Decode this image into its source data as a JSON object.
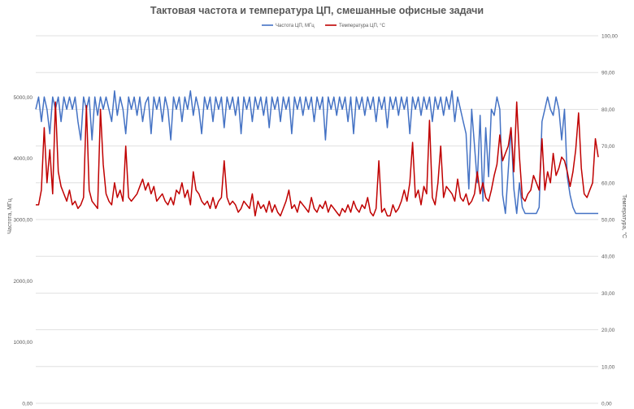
{
  "chart_data": {
    "type": "line",
    "title": "Тактовая частота и температура ЦП, смешанные офисные задачи",
    "legend_position": "top",
    "grid": true,
    "y_left": {
      "label": "Частота, МГц",
      "lim": [
        0,
        6000
      ],
      "ticks": [
        0,
        1000,
        2000,
        3000,
        4000,
        5000
      ],
      "tick_labels": [
        "0,00",
        "1000,00",
        "2000,00",
        "3000,00",
        "4000,00",
        "5000,00"
      ]
    },
    "y_right": {
      "label": "Температура, °C",
      "lim": [
        0,
        100
      ],
      "ticks": [
        0,
        10,
        20,
        30,
        40,
        50,
        60,
        70,
        80,
        90,
        100
      ],
      "tick_labels": [
        "0,00",
        "10,00",
        "20,00",
        "30,00",
        "40,00",
        "50,00",
        "60,00",
        "70,00",
        "80,00",
        "90,00",
        "100,00"
      ]
    },
    "x_range": [
      0,
      400
    ],
    "series": [
      {
        "name": "Частота ЦП, МГц",
        "axis": "left",
        "color": "#4472c4",
        "x": [
          0,
          2,
          4,
          6,
          8,
          10,
          12,
          14,
          16,
          18,
          20,
          22,
          24,
          26,
          28,
          30,
          32,
          34,
          36,
          38,
          40,
          42,
          44,
          46,
          48,
          50,
          52,
          54,
          56,
          58,
          60,
          62,
          64,
          66,
          68,
          70,
          72,
          74,
          76,
          78,
          80,
          82,
          84,
          86,
          88,
          90,
          92,
          94,
          96,
          98,
          100,
          102,
          104,
          106,
          108,
          110,
          112,
          114,
          116,
          118,
          120,
          122,
          124,
          126,
          128,
          130,
          132,
          134,
          136,
          138,
          140,
          142,
          144,
          146,
          148,
          150,
          152,
          154,
          156,
          158,
          160,
          162,
          164,
          166,
          168,
          170,
          172,
          174,
          176,
          178,
          180,
          182,
          184,
          186,
          188,
          190,
          192,
          194,
          196,
          198,
          200,
          202,
          204,
          206,
          208,
          210,
          212,
          214,
          216,
          218,
          220,
          222,
          224,
          226,
          228,
          230,
          232,
          234,
          236,
          238,
          240,
          242,
          244,
          246,
          248,
          250,
          252,
          254,
          256,
          258,
          260,
          262,
          264,
          266,
          268,
          270,
          272,
          274,
          276,
          278,
          280,
          282,
          284,
          286,
          288,
          290,
          292,
          294,
          296,
          298,
          300,
          302,
          304,
          306,
          308,
          310,
          312,
          314,
          316,
          318,
          320,
          322,
          324,
          326,
          328,
          330,
          332,
          334,
          336,
          338,
          340,
          342,
          344,
          346,
          348,
          350,
          352,
          354,
          356,
          358,
          360,
          362,
          364,
          366,
          368,
          370,
          372,
          374,
          376,
          378,
          380,
          382,
          384,
          386,
          388,
          390,
          392,
          394,
          396,
          398,
          400
        ],
        "values": [
          4800,
          5000,
          4600,
          5000,
          4800,
          4400,
          5000,
          4800,
          5000,
          4600,
          5000,
          4800,
          5000,
          4800,
          5000,
          4600,
          4300,
          5000,
          4800,
          5000,
          4300,
          5000,
          4700,
          5000,
          4800,
          5000,
          4800,
          4600,
          5100,
          4700,
          5000,
          4800,
          4400,
          5000,
          4800,
          5000,
          4700,
          5000,
          4600,
          4900,
          5000,
          4400,
          5000,
          4800,
          5000,
          4600,
          5000,
          4800,
          4300,
          5000,
          4800,
          5000,
          4600,
          5000,
          4800,
          5100,
          4700,
          5000,
          4800,
          4400,
          5000,
          4800,
          5000,
          4600,
          5000,
          4800,
          5000,
          4500,
          5000,
          4800,
          5000,
          4700,
          5000,
          4400,
          5000,
          4800,
          5000,
          4600,
          5000,
          4800,
          5000,
          4700,
          5000,
          4500,
          5000,
          4800,
          5000,
          4600,
          5000,
          4800,
          5000,
          4400,
          5000,
          4800,
          5000,
          4700,
          5000,
          4800,
          5000,
          4600,
          5000,
          4800,
          5000,
          4300,
          5000,
          4800,
          5000,
          4700,
          5000,
          4800,
          5000,
          4600,
          5000,
          4400,
          5000,
          4800,
          5000,
          4700,
          5000,
          4800,
          5000,
          4600,
          5000,
          4800,
          5000,
          4500,
          5000,
          4800,
          5000,
          4700,
          5000,
          4800,
          5000,
          4400,
          5000,
          4800,
          5000,
          4700,
          5000,
          4800,
          5000,
          4600,
          5000,
          4800,
          5000,
          4700,
          5000,
          4800,
          5100,
          4600,
          5000,
          4800,
          4600,
          4400,
          3500,
          4800,
          4200,
          3600,
          4700,
          3300,
          4500,
          3700,
          4800,
          4700,
          5000,
          4800,
          3400,
          3100,
          3800,
          4500,
          3500,
          3100,
          3600,
          3200,
          3100,
          3100,
          3100,
          3100,
          3100,
          3200,
          4600,
          4800,
          5000,
          4800,
          4700,
          5000,
          4800,
          4300,
          4800,
          3700,
          3400,
          3200,
          3100,
          3100,
          3100,
          3100,
          3100,
          3100,
          3100,
          3100,
          3100
        ]
      },
      {
        "name": "Температура ЦП, °C",
        "axis": "right",
        "color": "#c00000",
        "x": [
          0,
          2,
          4,
          6,
          8,
          10,
          12,
          14,
          16,
          18,
          20,
          22,
          24,
          26,
          28,
          30,
          32,
          34,
          36,
          38,
          40,
          42,
          44,
          46,
          48,
          50,
          52,
          54,
          56,
          58,
          60,
          62,
          64,
          66,
          68,
          70,
          72,
          74,
          76,
          78,
          80,
          82,
          84,
          86,
          88,
          90,
          92,
          94,
          96,
          98,
          100,
          102,
          104,
          106,
          108,
          110,
          112,
          114,
          116,
          118,
          120,
          122,
          124,
          126,
          128,
          130,
          132,
          134,
          136,
          138,
          140,
          142,
          144,
          146,
          148,
          150,
          152,
          154,
          156,
          158,
          160,
          162,
          164,
          166,
          168,
          170,
          172,
          174,
          176,
          178,
          180,
          182,
          184,
          186,
          188,
          190,
          192,
          194,
          196,
          198,
          200,
          202,
          204,
          206,
          208,
          210,
          212,
          214,
          216,
          218,
          220,
          222,
          224,
          226,
          228,
          230,
          232,
          234,
          236,
          238,
          240,
          242,
          244,
          246,
          248,
          250,
          252,
          254,
          256,
          258,
          260,
          262,
          264,
          266,
          268,
          270,
          272,
          274,
          276,
          278,
          280,
          282,
          284,
          286,
          288,
          290,
          292,
          294,
          296,
          298,
          300,
          302,
          304,
          306,
          308,
          310,
          312,
          314,
          316,
          318,
          320,
          322,
          324,
          326,
          328,
          330,
          332,
          334,
          336,
          338,
          340,
          342,
          344,
          346,
          348,
          350,
          352,
          354,
          356,
          358,
          360,
          362,
          364,
          366,
          368,
          370,
          372,
          374,
          376,
          378,
          380,
          382,
          384,
          386,
          388,
          390,
          392,
          394,
          396,
          398,
          400
        ],
        "values": [
          54,
          54,
          58,
          75,
          60,
          69,
          57,
          82,
          63,
          59,
          57,
          55,
          58,
          54,
          55,
          53,
          54,
          56,
          81,
          58,
          55,
          54,
          53,
          80,
          65,
          57,
          55,
          54,
          60,
          56,
          58,
          55,
          70,
          56,
          55,
          56,
          57,
          59,
          61,
          58,
          60,
          57,
          59,
          55,
          56,
          57,
          55,
          54,
          56,
          54,
          58,
          57,
          60,
          56,
          58,
          54,
          63,
          58,
          57,
          55,
          54,
          55,
          53,
          56,
          53,
          55,
          56,
          66,
          56,
          54,
          55,
          54,
          52,
          53,
          55,
          54,
          53,
          57,
          51,
          55,
          53,
          54,
          52,
          55,
          52,
          54,
          52,
          51,
          53,
          55,
          58,
          53,
          54,
          52,
          55,
          54,
          53,
          52,
          56,
          53,
          52,
          54,
          53,
          55,
          52,
          54,
          53,
          52,
          51,
          53,
          52,
          54,
          52,
          55,
          53,
          52,
          54,
          53,
          56,
          52,
          51,
          53,
          66,
          52,
          53,
          51,
          51,
          54,
          52,
          53,
          55,
          58,
          55,
          60,
          71,
          56,
          58,
          54,
          59,
          57,
          77,
          56,
          54,
          60,
          70,
          56,
          59,
          58,
          57,
          55,
          61,
          56,
          55,
          57,
          54,
          55,
          57,
          63,
          57,
          60,
          56,
          55,
          58,
          62,
          65,
          73,
          66,
          68,
          70,
          75,
          63,
          82,
          67,
          56,
          55,
          57,
          58,
          62,
          60,
          58,
          72,
          58,
          63,
          60,
          68,
          62,
          64,
          67,
          66,
          63,
          59,
          63,
          69,
          79,
          64,
          57,
          56,
          58,
          60,
          72,
          67
        ]
      }
    ]
  }
}
